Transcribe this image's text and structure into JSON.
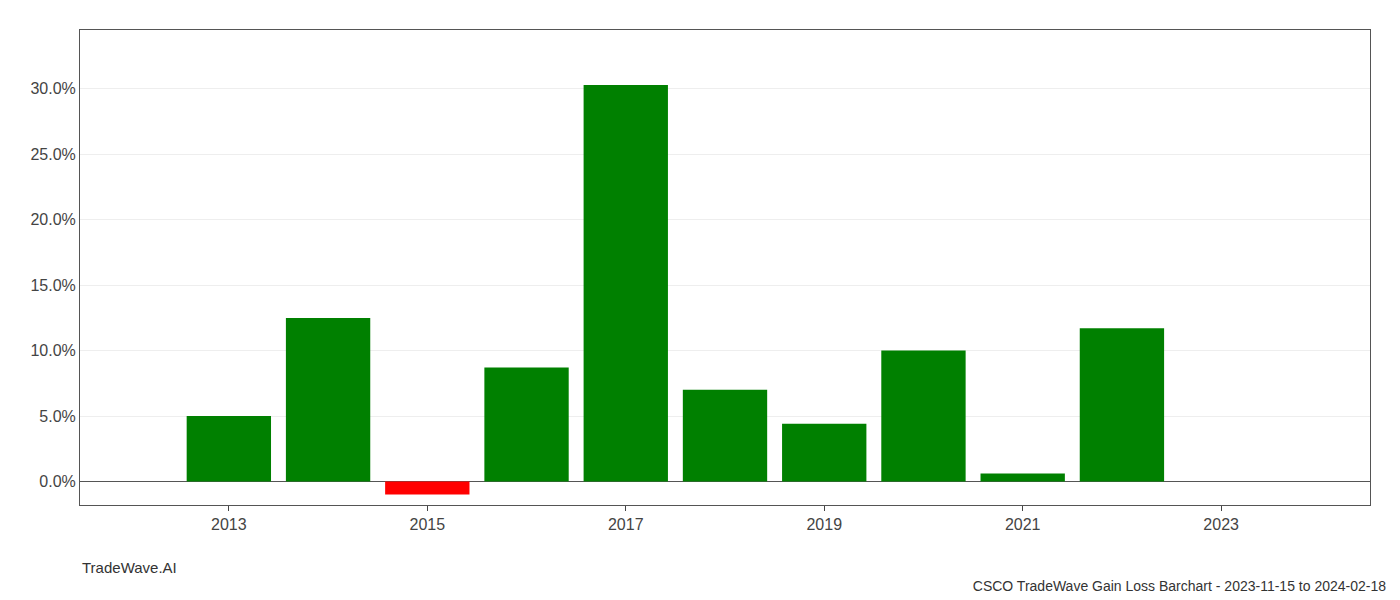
{
  "chart_data": {
    "type": "bar",
    "title": "CSCO TradeWave Gain Loss Barchart - 2023-11-15 to 2024-02-18",
    "annotations": [
      "TradeWave.AI"
    ],
    "x": [
      2013,
      2014,
      2015,
      2016,
      2017,
      2018,
      2019,
      2020,
      2021,
      2022
    ],
    "values": [
      0.05,
      0.125,
      -0.01,
      0.087,
      0.303,
      0.07,
      0.044,
      0.1,
      0.006,
      0.117
    ],
    "colors": [
      "#008000",
      "#008000",
      "#ff0000",
      "#008000",
      "#008000",
      "#008000",
      "#008000",
      "#008000",
      "#008000",
      "#008000"
    ],
    "xlim": [
      2011.5,
      2024.5
    ],
    "xticks": [
      2013,
      2015,
      2017,
      2019,
      2021,
      2023
    ],
    "ylim": [
      -0.018,
      0.345
    ],
    "yticks": [
      {
        "value": 0.0,
        "label": "0.0%"
      },
      {
        "value": 0.05,
        "label": "5.0%"
      },
      {
        "value": 0.1,
        "label": "10.0%"
      },
      {
        "value": 0.15,
        "label": "15.0%"
      },
      {
        "value": 0.2,
        "label": "20.0%"
      },
      {
        "value": 0.25,
        "label": "25.0%"
      },
      {
        "value": 0.3,
        "label": "30.0%"
      }
    ],
    "grid": "y"
  }
}
